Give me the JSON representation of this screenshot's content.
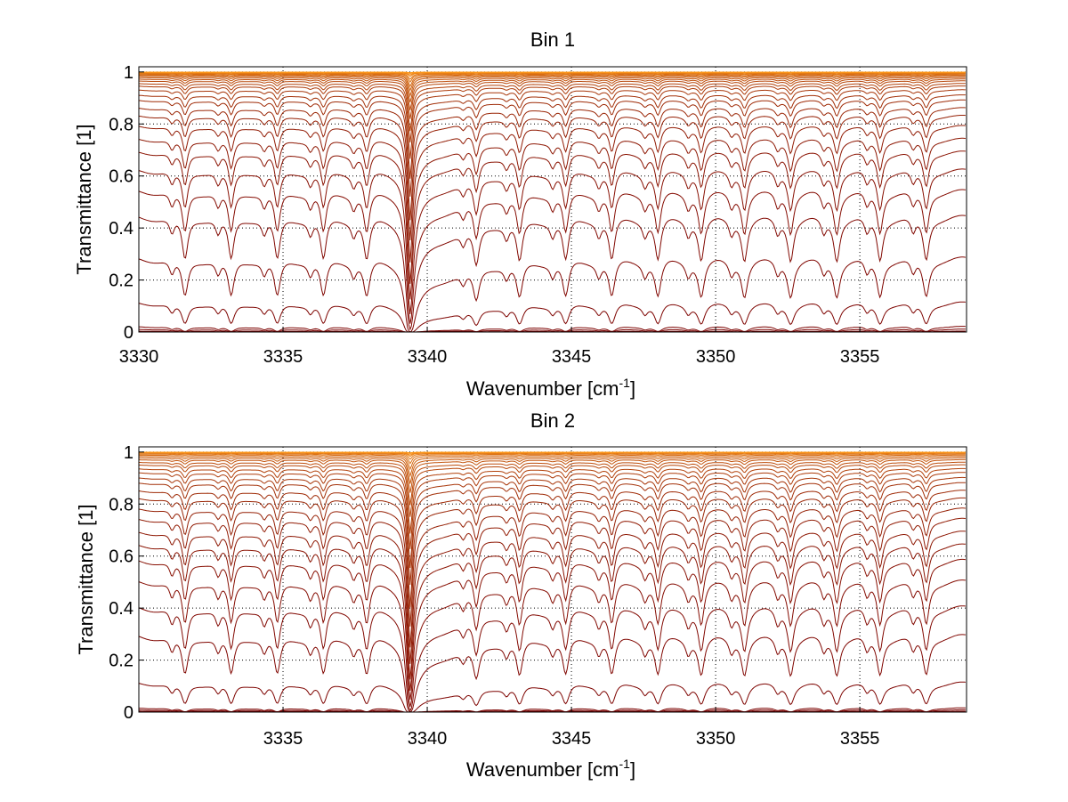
{
  "chart_data": [
    {
      "type": "line",
      "title": "Bin 1",
      "xlabel": "Wavenumber [cm",
      "xlabel_sup": "-1",
      "xlabel_end": "]",
      "ylabel": "Transmittance [1]",
      "xlim": [
        3330,
        3358.7
      ],
      "ylim": [
        0,
        1.02
      ],
      "xticks": [
        3330,
        3335,
        3340,
        3345,
        3350,
        3355
      ],
      "yticks": [
        0,
        0.2,
        0.4,
        0.6,
        0.8,
        1
      ],
      "xtick_labels": [
        "3330",
        "3335",
        "3340",
        "3345",
        "3350",
        "3355"
      ],
      "ytick_labels": [
        "0",
        "0.2",
        "0.4",
        "0.6",
        "0.8",
        "1"
      ],
      "grid": true,
      "series_count": 30,
      "series_color_range": [
        "#7a0000",
        "#ff9a1a"
      ],
      "strong_line_center": 3339.4,
      "line_centers": [
        3331.6,
        3333.2,
        3334.8,
        3336.4,
        3337.9,
        3341.7,
        3343.2,
        3344.8,
        3346.4,
        3348.0,
        3349.5,
        3351.0,
        3352.6,
        3354.2,
        3355.7,
        3357.3
      ],
      "curve_baselines": [
        0.003,
        0.01,
        0.02,
        0.11,
        0.28,
        0.44,
        0.54,
        0.62,
        0.69,
        0.74,
        0.79,
        0.83,
        0.86,
        0.89,
        0.91,
        0.93,
        0.945,
        0.955,
        0.965,
        0.972,
        0.978,
        0.983,
        0.987,
        0.99,
        0.993,
        0.995,
        0.997,
        0.998,
        0.999,
        0.9995
      ]
    },
    {
      "type": "line",
      "title": "Bin 2",
      "xlabel": "Wavenumber [cm",
      "xlabel_sup": "-1",
      "xlabel_end": "]",
      "ylabel": "Transmittance [1]",
      "xlim": [
        3330,
        3358.7
      ],
      "ylim": [
        0,
        1.02
      ],
      "xticks": [
        3335,
        3340,
        3345,
        3350,
        3355
      ],
      "yticks": [
        0,
        0.2,
        0.4,
        0.6,
        0.8,
        1
      ],
      "xtick_labels": [
        "3335",
        "3340",
        "3345",
        "3350",
        "3355"
      ],
      "ytick_labels": [
        "0",
        "0.2",
        "0.4",
        "0.6",
        "0.8",
        "1"
      ],
      "grid": true,
      "series_count": 30,
      "series_color_range": [
        "#7a0000",
        "#ff9a1a"
      ],
      "strong_line_center": 3339.4,
      "line_centers": [
        3331.6,
        3333.2,
        3334.8,
        3336.4,
        3337.9,
        3341.7,
        3343.2,
        3344.8,
        3346.4,
        3348.0,
        3349.5,
        3351.0,
        3352.6,
        3354.2,
        3355.7,
        3357.3
      ],
      "curve_baselines": [
        0.003,
        0.008,
        0.015,
        0.11,
        0.29,
        0.4,
        0.5,
        0.58,
        0.64,
        0.69,
        0.74,
        0.78,
        0.82,
        0.85,
        0.88,
        0.9,
        0.92,
        0.935,
        0.95,
        0.96,
        0.97,
        0.977,
        0.983,
        0.988,
        0.992,
        0.995,
        0.997,
        0.998,
        0.999,
        0.9995
      ]
    }
  ]
}
